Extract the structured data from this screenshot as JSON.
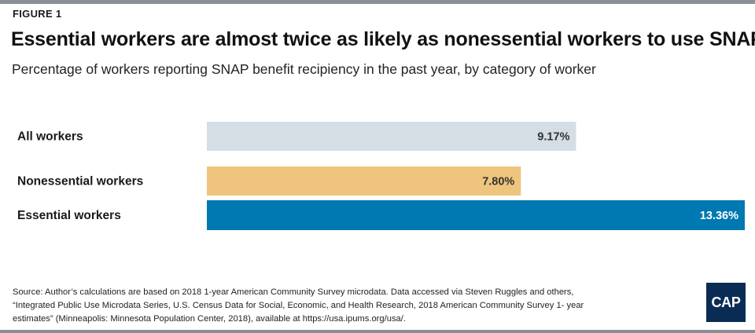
{
  "figure_label": "FIGURE 1",
  "title": "Essential workers are almost twice as likely as nonessential workers to use SNAP",
  "subtitle": "Percentage of workers reporting SNAP benefit recipiency in the past year, by category of worker",
  "source_lines": [
    "Source: Author’s calculations are based on 2018 1-year American Community Survey microdata. Data accessed via Steven Ruggles and others,",
    "“Integrated Public Use Microdata Series, U.S. Census Data for Social, Economic, and Health Research, 2018 American Community Survey 1- year",
    "estimates” (Minneapolis: Minnesota Population Center, 2018), available at https://usa.ipums.org/usa/."
  ],
  "logo_text": "CAP",
  "chart_data": {
    "type": "bar",
    "orientation": "horizontal",
    "title": "Essential workers are almost twice as likely as nonessential workers to use SNAP",
    "subtitle": "Percentage of workers reporting SNAP benefit recipiency in the past year, by category of worker",
    "xlabel": "",
    "ylabel": "",
    "xlim": [
      0,
      13.36
    ],
    "grid": false,
    "legend": "none",
    "categories": [
      "All workers",
      "Nonessential workers",
      "Essential workers"
    ],
    "values": [
      9.17,
      7.8,
      13.36
    ],
    "value_labels": [
      "9.17%",
      "7.80%",
      "13.36%"
    ],
    "colors": [
      "#d5dee4",
      "#efc57d",
      "#0078b1"
    ],
    "label_colors": [
      "#333333",
      "#333333",
      "#ffffff"
    ]
  }
}
